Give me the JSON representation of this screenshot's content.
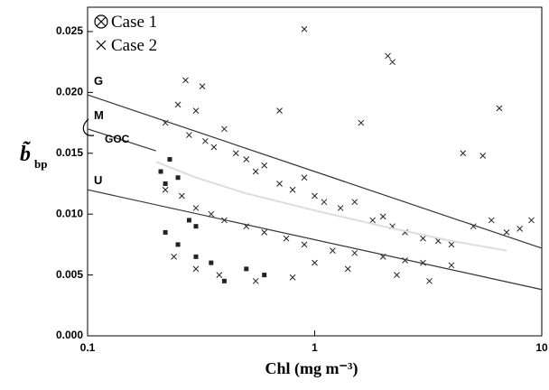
{
  "chart_data": {
    "type": "scatter",
    "x_label": "Chl (mg m⁻³)",
    "y_label": "b̃",
    "y_label_subscript": "bp",
    "xlim": [
      0.1,
      10
    ],
    "xticks": [
      0.1,
      1,
      10
    ],
    "x_log": true,
    "ylim": [
      0,
      0.027
    ],
    "yticks": [
      {
        "value": 0,
        "label": "0.000"
      },
      0.005,
      {
        "value": 0.01,
        "label": "0.010"
      },
      0.015,
      {
        "value": 0.02,
        "label": "0.020"
      },
      0.025
    ],
    "series": [
      {
        "name": "Case 1",
        "marker": "square",
        "color": "#222222",
        "x": [
          0.21,
          0.22,
          0.23,
          0.25,
          0.28,
          0.3,
          0.35,
          0.4,
          0.5,
          0.6,
          0.22,
          0.25,
          0.3
        ],
        "values": [
          0.0135,
          0.0125,
          0.0145,
          0.013,
          0.0095,
          0.0065,
          0.006,
          0.0045,
          0.0055,
          0.005,
          0.0085,
          0.0075,
          0.009
        ]
      },
      {
        "name": "Case 2",
        "marker": "x",
        "color": "#222222",
        "x": [
          0.22,
          0.25,
          0.28,
          0.3,
          0.33,
          0.36,
          0.4,
          0.45,
          0.5,
          0.55,
          0.6,
          0.7,
          0.8,
          0.9,
          1.0,
          1.1,
          1.3,
          1.5,
          1.8,
          2.0,
          2.2,
          2.5,
          3.0,
          3.5,
          4.0,
          5.0,
          6.0,
          7.0,
          8.0,
          9.0,
          0.22,
          0.26,
          0.3,
          0.35,
          0.4,
          0.5,
          0.6,
          0.75,
          0.9,
          1.2,
          1.5,
          2.0,
          2.5,
          3.0,
          4.0,
          0.9,
          2.1,
          2.2,
          0.27,
          0.32,
          0.7,
          1.6,
          4.5,
          5.5,
          6.5,
          0.24,
          0.3,
          0.38,
          0.55,
          0.8,
          1.0,
          1.4,
          2.3,
          3.2
        ],
        "values": [
          0.0175,
          0.019,
          0.0165,
          0.0185,
          0.016,
          0.0155,
          0.017,
          0.015,
          0.0145,
          0.0135,
          0.014,
          0.0125,
          0.012,
          0.013,
          0.0115,
          0.011,
          0.0105,
          0.011,
          0.0095,
          0.0098,
          0.009,
          0.0085,
          0.008,
          0.0078,
          0.0075,
          0.009,
          0.0095,
          0.0085,
          0.0088,
          0.0095,
          0.012,
          0.0115,
          0.0105,
          0.01,
          0.0095,
          0.009,
          0.0085,
          0.008,
          0.0075,
          0.007,
          0.0068,
          0.0065,
          0.0062,
          0.006,
          0.0058,
          0.0252,
          0.023,
          0.0225,
          0.021,
          0.0205,
          0.0185,
          0.0175,
          0.015,
          0.0148,
          0.0187,
          0.0065,
          0.0055,
          0.005,
          0.0045,
          0.0048,
          0.006,
          0.0055,
          0.005,
          0.0045
        ]
      }
    ],
    "lines": [
      {
        "name": "G",
        "color": "#333333",
        "x": [
          0.1,
          10
        ],
        "values": [
          0.0198,
          0.0072
        ]
      },
      {
        "name": "M",
        "color": "#333333",
        "x": [
          0.1,
          0.2
        ],
        "values": [
          0.017,
          0.0152
        ]
      },
      {
        "name": "U",
        "color": "#333333",
        "x": [
          0.1,
          10
        ],
        "values": [
          0.012,
          0.0038
        ]
      },
      {
        "name": "GOC",
        "color": "#dddddd",
        "x": [
          0.2,
          0.3,
          0.5,
          1,
          2,
          4,
          7
        ],
        "values": [
          0.0143,
          0.013,
          0.0117,
          0.0103,
          0.009,
          0.0078,
          0.007
        ]
      }
    ]
  }
}
